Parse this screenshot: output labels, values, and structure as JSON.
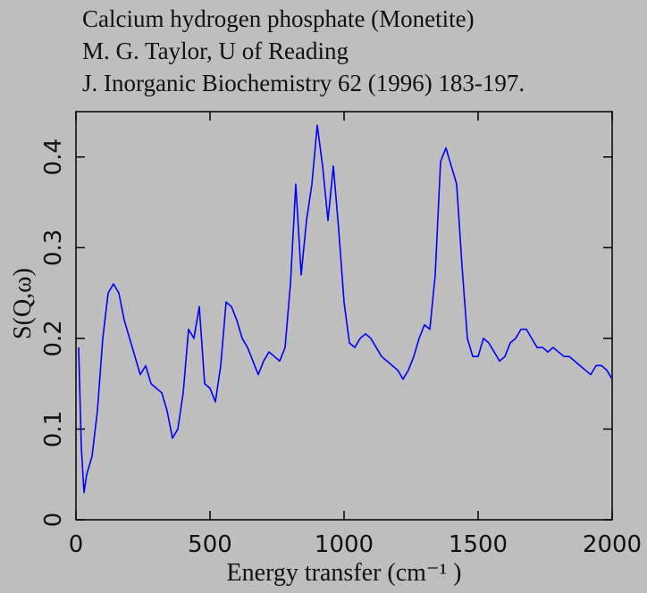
{
  "chart_data": {
    "type": "line",
    "title": "Calcium hydrogen phosphate (Monetite)",
    "subtitle": [
      "M. G. Taylor, U of Reading",
      "J. Inorganic Biochemistry 62 (1996) 183-197."
    ],
    "x_label": "Energy transfer (cm⁻¹ )",
    "y_label": "S(Q,ω)",
    "color": "#0000ff",
    "xlim": [
      0,
      2000
    ],
    "ylim": [
      0,
      0.45
    ],
    "xticks": [
      0,
      500,
      1000,
      1500,
      2000
    ],
    "yticks": [
      0,
      0.1,
      0.2,
      0.3,
      0.4
    ],
    "x": [
      10,
      20,
      30,
      40,
      60,
      80,
      100,
      120,
      140,
      160,
      180,
      200,
      220,
      240,
      260,
      280,
      300,
      320,
      340,
      360,
      380,
      400,
      420,
      440,
      460,
      480,
      500,
      520,
      540,
      560,
      580,
      600,
      620,
      640,
      660,
      680,
      700,
      720,
      740,
      760,
      780,
      800,
      820,
      840,
      860,
      880,
      900,
      920,
      940,
      960,
      980,
      1000,
      1020,
      1040,
      1060,
      1080,
      1100,
      1120,
      1140,
      1160,
      1180,
      1200,
      1220,
      1240,
      1260,
      1280,
      1300,
      1320,
      1340,
      1360,
      1380,
      1400,
      1420,
      1440,
      1460,
      1480,
      1500,
      1520,
      1540,
      1560,
      1580,
      1600,
      1620,
      1640,
      1660,
      1680,
      1700,
      1720,
      1740,
      1760,
      1780,
      1800,
      1820,
      1840,
      1860,
      1880,
      1900,
      1920,
      1940,
      1960,
      1980,
      2000
    ],
    "values": [
      0.19,
      0.08,
      0.03,
      0.05,
      0.07,
      0.12,
      0.2,
      0.25,
      0.26,
      0.25,
      0.22,
      0.2,
      0.18,
      0.16,
      0.17,
      0.15,
      0.145,
      0.14,
      0.12,
      0.09,
      0.1,
      0.14,
      0.21,
      0.2,
      0.235,
      0.15,
      0.145,
      0.13,
      0.17,
      0.24,
      0.235,
      0.22,
      0.2,
      0.19,
      0.175,
      0.16,
      0.175,
      0.185,
      0.18,
      0.175,
      0.19,
      0.26,
      0.37,
      0.27,
      0.33,
      0.37,
      0.435,
      0.39,
      0.33,
      0.39,
      0.32,
      0.24,
      0.195,
      0.19,
      0.2,
      0.205,
      0.2,
      0.19,
      0.18,
      0.175,
      0.17,
      0.165,
      0.155,
      0.165,
      0.18,
      0.2,
      0.215,
      0.21,
      0.27,
      0.395,
      0.41,
      0.39,
      0.37,
      0.28,
      0.2,
      0.18,
      0.18,
      0.2,
      0.195,
      0.185,
      0.175,
      0.18,
      0.195,
      0.2,
      0.21,
      0.21,
      0.2,
      0.19,
      0.19,
      0.185,
      0.19,
      0.185,
      0.18,
      0.18,
      0.175,
      0.17,
      0.165,
      0.16,
      0.17,
      0.17,
      0.165,
      0.155
    ]
  }
}
